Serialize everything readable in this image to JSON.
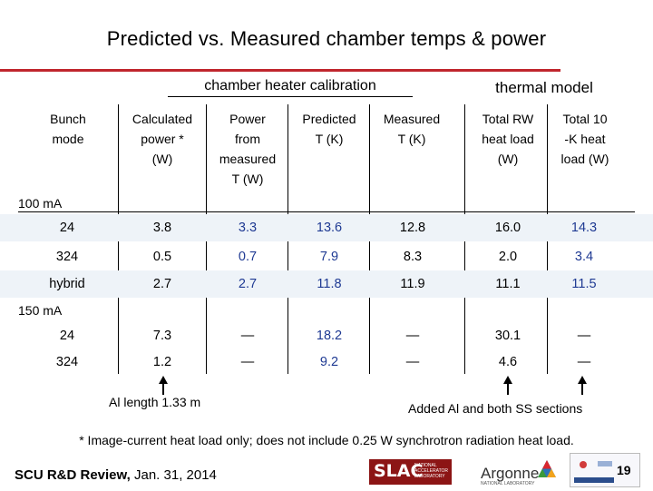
{
  "title": "Predicted vs. Measured chamber temps & power",
  "groups": {
    "calibration": "chamber heater calibration",
    "thermal": "thermal model"
  },
  "headers": {
    "bunch_mode": [
      "Bunch",
      "mode"
    ],
    "calculated": [
      "Calculated",
      "power *",
      "(W)"
    ],
    "power_measured": [
      "Power",
      "from",
      "measured",
      "T (W)"
    ],
    "predicted": [
      "Predicted",
      "T (K)"
    ],
    "measured": [
      "Measured",
      "T (K)"
    ],
    "total_rw": [
      "Total RW",
      "heat load",
      "(W)"
    ],
    "total_10k": [
      "Total  10",
      "-K heat",
      "load (W)"
    ]
  },
  "sections": [
    {
      "label": "100 mA",
      "rows": [
        {
          "mode": "24",
          "calc": "3.8",
          "pow": "3.3",
          "pred": "13.6",
          "meas": "12.8",
          "rw": "16.0",
          "k10": "14.3"
        },
        {
          "mode": "324",
          "calc": "0.5",
          "pow": "0.7",
          "pred": "7.9",
          "meas": "8.3",
          "rw": "2.0",
          "k10": "3.4"
        },
        {
          "mode": "hybrid",
          "calc": "2.7",
          "pow": "2.7",
          "pred": "11.8",
          "meas": "11.9",
          "rw": "11.1",
          "k10": "11.5"
        }
      ]
    },
    {
      "label": "150 mA",
      "rows": [
        {
          "mode": "24",
          "calc": "7.3",
          "pow": "—",
          "pred": "18.2",
          "meas": "—",
          "rw": "30.1",
          "k10": "—"
        },
        {
          "mode": "324",
          "calc": "1.2",
          "pow": "—",
          "pred": "9.2",
          "meas": "—",
          "rw": "4.6",
          "k10": "—"
        }
      ]
    }
  ],
  "notes": {
    "al_length": "Al length 1.33 m",
    "added": "Added Al and both SS sections",
    "footnote": "* Image-current heat load only; does not include 0.25 W synchrotron radiation heat load.",
    "review_bold": "SCU R&D Review,",
    "review_date": "Jan. 31, 2014"
  },
  "logos": {
    "slac": "SLAC",
    "slac_sub": "NATIONAL ACCELERATOR LABORATORY",
    "argonne": "Argonne",
    "argonne_sub": "NATIONAL LABORATORY"
  },
  "page_number": "19",
  "colors": {
    "accent_rule": "#c0262d",
    "value_blue": "#1f3a93",
    "slac_red": "#8c1515"
  }
}
